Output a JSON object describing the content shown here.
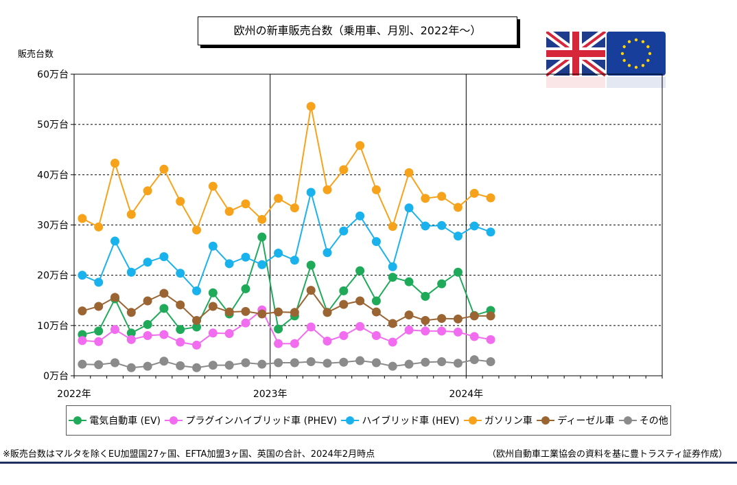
{
  "title": "欧州の新車販売台数（乗用車、月別、2022年～）",
  "y_axis_title": "販売台数",
  "note": "※販売台数はマルタを除くEU加盟国27ヶ国、EFTA加盟3ヶ国、英国の合計、2024年2月時点",
  "source": "（欧州自動車工業協会の資料を基に豊トラスティ証券作成）",
  "flags": [
    "uk-flag",
    "eu-flag"
  ],
  "chart_data": {
    "type": "line",
    "x_labels": [
      "2022年",
      "2023年",
      "2024年"
    ],
    "x": [
      "2022-01",
      "2022-02",
      "2022-03",
      "2022-04",
      "2022-05",
      "2022-06",
      "2022-07",
      "2022-08",
      "2022-09",
      "2022-10",
      "2022-11",
      "2022-12",
      "2023-01",
      "2023-02",
      "2023-03",
      "2023-04",
      "2023-05",
      "2023-06",
      "2023-07",
      "2023-08",
      "2023-09",
      "2023-10",
      "2023-11",
      "2023-12",
      "2024-01",
      "2024-02"
    ],
    "y_ticks": [
      "0万台",
      "10万台",
      "20万台",
      "30万台",
      "40万台",
      "50万台",
      "60万台"
    ],
    "ylim": [
      0,
      60
    ],
    "unit": "万台",
    "grid": true,
    "legend_position": "bottom",
    "series": [
      {
        "name": "電気自動車 (EV)",
        "color": "#1faa59",
        "values": [
          8.2,
          8.9,
          15.3,
          8.5,
          10.2,
          13.4,
          9.2,
          9.7,
          16.5,
          12.3,
          17.3,
          27.6,
          9.3,
          11.9,
          22.0,
          12.6,
          16.9,
          20.9,
          14.9,
          19.6,
          18.7,
          15.8,
          18.3,
          20.6,
          12.0,
          13.0
        ]
      },
      {
        "name": "プラグインハイブリッド車 (PHEV)",
        "color": "#f26cf0",
        "values": [
          7.0,
          6.8,
          9.2,
          7.2,
          8.0,
          8.2,
          6.7,
          6.1,
          8.5,
          8.4,
          10.5,
          13.1,
          6.4,
          6.4,
          9.7,
          6.9,
          8.0,
          9.8,
          8.0,
          6.7,
          9.1,
          8.9,
          8.9,
          8.7,
          7.8,
          7.2
        ]
      },
      {
        "name": "ハイブリッド車 (HEV)",
        "color": "#19b2ec",
        "values": [
          20.0,
          18.6,
          26.8,
          20.6,
          22.6,
          23.7,
          20.4,
          16.9,
          25.8,
          22.3,
          23.6,
          22.1,
          24.4,
          23.0,
          36.5,
          24.5,
          28.8,
          31.8,
          26.7,
          21.7,
          33.4,
          29.8,
          29.9,
          27.8,
          29.8,
          28.6
        ]
      },
      {
        "name": "ガソリン車",
        "color": "#f7a21b",
        "values": [
          31.3,
          29.6,
          42.3,
          32.1,
          36.8,
          41.1,
          34.7,
          29.0,
          37.7,
          32.7,
          34.2,
          31.1,
          35.3,
          33.4,
          53.6,
          37.0,
          41.0,
          45.8,
          37.0,
          29.7,
          40.4,
          35.3,
          35.7,
          33.5,
          36.3,
          35.4
        ]
      },
      {
        "name": "ディーゼル車",
        "color": "#9a6433",
        "values": [
          12.9,
          13.8,
          15.6,
          12.6,
          14.9,
          16.4,
          14.1,
          11.0,
          13.8,
          12.7,
          12.8,
          12.3,
          12.7,
          12.6,
          17.0,
          12.6,
          14.2,
          14.9,
          12.7,
          10.4,
          12.1,
          11.0,
          11.4,
          11.3,
          11.9,
          11.9
        ]
      },
      {
        "name": "その他",
        "color": "#8b8b8b",
        "values": [
          2.3,
          2.2,
          2.6,
          1.6,
          1.9,
          2.9,
          2.0,
          1.6,
          2.1,
          2.1,
          2.6,
          2.3,
          2.6,
          2.6,
          2.8,
          2.5,
          2.7,
          3.0,
          2.6,
          1.9,
          2.3,
          2.7,
          2.8,
          2.5,
          3.2,
          2.8
        ]
      }
    ]
  }
}
